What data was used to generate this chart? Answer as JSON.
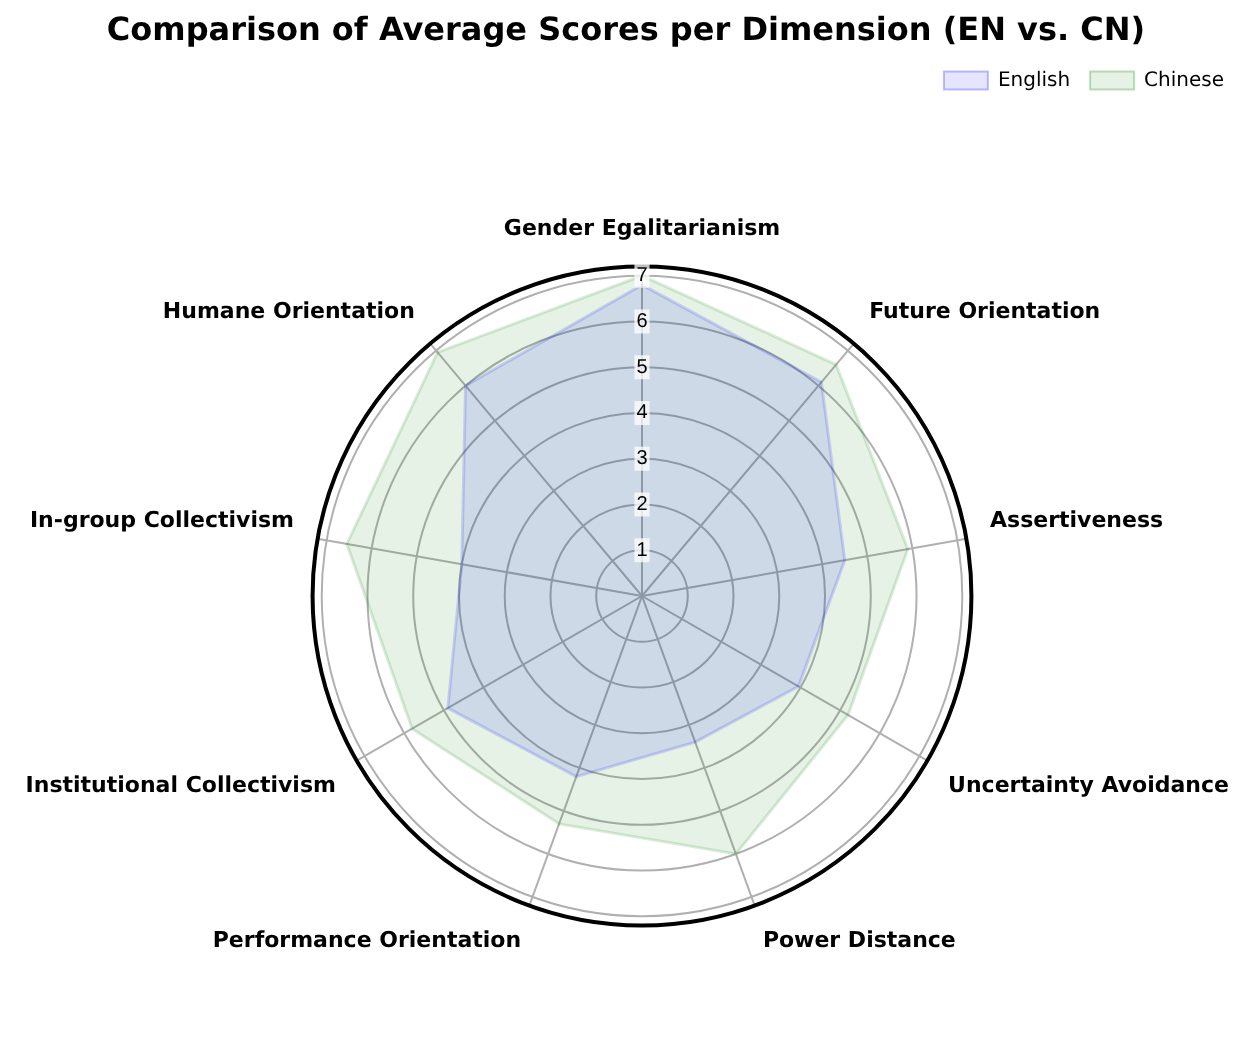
{
  "chart_data": {
    "type": "radar",
    "title": "Comparison of Average Scores per Dimension (EN vs. CN)",
    "categories": [
      "Gender Egalitarianism",
      "Future Orientation",
      "Assertiveness",
      "Uncertainty Avoidance",
      "Power Distance",
      "Performance Orientation",
      "Institutional Collectivism",
      "In-group Collectivism",
      "Humane Orientation"
    ],
    "series": [
      {
        "name": "English",
        "color": "#0000ff",
        "values": [
          6.8,
          6.1,
          4.5,
          3.95,
          3.4,
          4.2,
          4.9,
          4.0,
          6.0
        ]
      },
      {
        "name": "Chinese",
        "color": "#008000",
        "values": [
          7.0,
          6.6,
          5.9,
          5.2,
          6.0,
          5.3,
          5.8,
          6.55,
          6.95
        ]
      }
    ],
    "ylim": [
      0,
      7.2
    ],
    "yticks": [
      1,
      2,
      3,
      4,
      5,
      6,
      7
    ],
    "grid": true,
    "legend": "top right",
    "marker": "none"
  }
}
